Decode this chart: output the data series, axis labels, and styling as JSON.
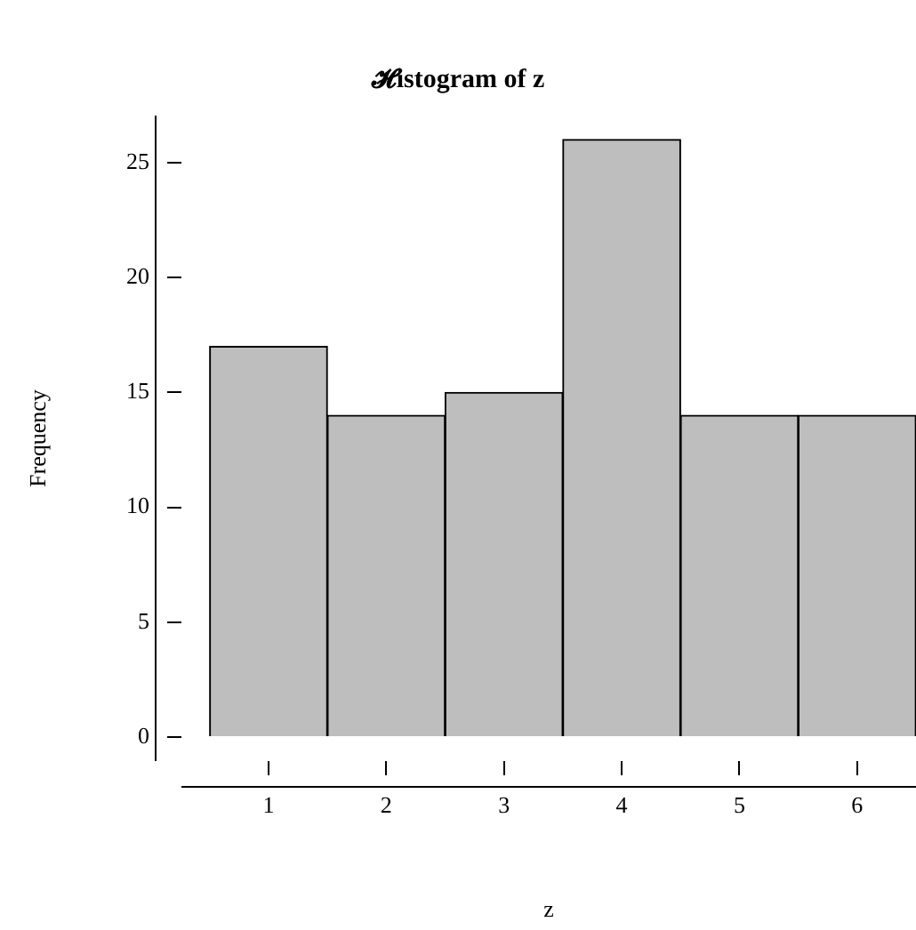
{
  "chart_data": {
    "type": "histogram",
    "title": "𝓗istogram of z",
    "xlabel": "z",
    "ylabel": "Frequency",
    "bins": [
      0.5,
      1.5,
      2.5,
      3.5,
      4.5,
      5.5,
      6.5
    ],
    "values": [
      17,
      14,
      15,
      26,
      14,
      14
    ],
    "color": "#bebebe",
    "xlim": [
      0.26,
      6.5
    ],
    "xticks": [
      1,
      2,
      3,
      4,
      5,
      6
    ],
    "ylim": [
      -1.04,
      27.04
    ],
    "yticks": [
      0,
      5,
      10,
      15,
      20,
      25
    ],
    "grid": false,
    "legend": false
  }
}
